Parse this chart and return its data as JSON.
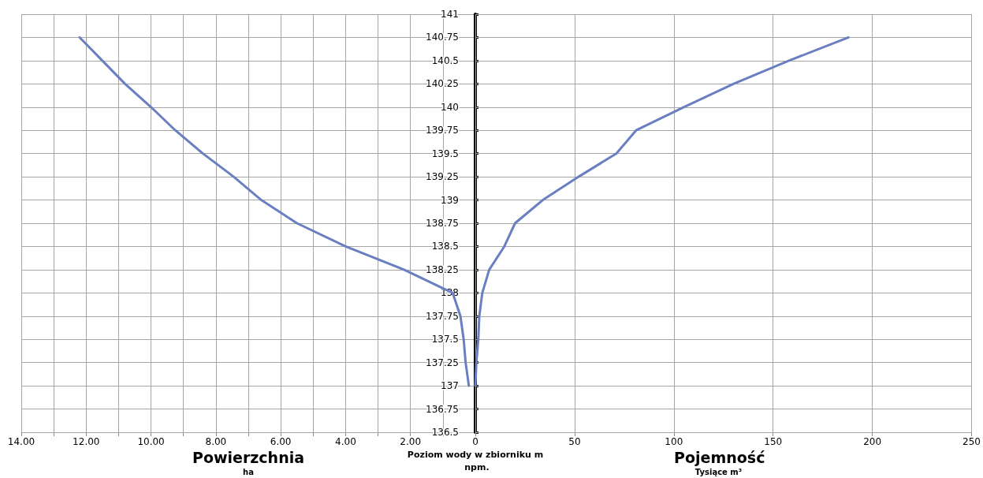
{
  "chart_data": [
    {
      "type": "line",
      "xlabel": "Powierzchnia",
      "ylabel": "Poziom wody w zbiorniku m npm.",
      "annotations": [
        "ha"
      ],
      "x": [
        0.2,
        0.3,
        0.36,
        0.46,
        0.7,
        2.2,
        4.0,
        5.5,
        6.6,
        7.45,
        8.4,
        9.25,
        10.0,
        10.8,
        11.5,
        12.2
      ],
      "values": [
        137,
        137.25,
        137.5,
        137.75,
        138,
        138.25,
        138.5,
        138.75,
        139,
        139.25,
        139.5,
        139.75,
        140,
        140.25,
        140.5,
        140.75
      ],
      "color": "#6a7fc1",
      "marker": "none",
      "line_style": "solid",
      "grid": true,
      "xlim": [
        14,
        0
      ],
      "xticks": [
        {
          "value": 14,
          "label": "14.00"
        },
        {
          "value": 13,
          "label": null
        },
        {
          "value": 12,
          "label": "12.00"
        },
        {
          "value": 11,
          "label": null
        },
        {
          "value": 10,
          "label": "10.00"
        },
        {
          "value": 9,
          "label": null
        },
        {
          "value": 8,
          "label": "8.00"
        },
        {
          "value": 7,
          "label": null
        },
        {
          "value": 6,
          "label": "6.00"
        },
        {
          "value": 5,
          "label": null
        },
        {
          "value": 4,
          "label": "4.00"
        },
        {
          "value": 3,
          "label": null
        },
        {
          "value": 2,
          "label": "2.00"
        },
        {
          "value": 1,
          "label": null
        },
        {
          "value": 0,
          "label": null
        }
      ],
      "ylim": [
        136.5,
        141
      ],
      "yticks": [
        136.5,
        136.75,
        137,
        137.25,
        137.5,
        137.75,
        138,
        138.25,
        138.5,
        138.75,
        139,
        139.25,
        139.5,
        139.75,
        140,
        140.25,
        140.5,
        140.75,
        141
      ]
    },
    {
      "type": "line",
      "xlabel": "Pojemność",
      "annotations": [
        "Tysiące m³"
      ],
      "x": [
        0,
        0.5,
        1.5,
        2,
        3.5,
        7,
        14.6,
        20,
        34,
        52,
        71,
        81,
        105,
        130,
        158,
        188
      ],
      "values": [
        137,
        137.25,
        137.5,
        137.75,
        138,
        138.25,
        138.5,
        138.75,
        139,
        139.25,
        139.5,
        139.75,
        140,
        140.25,
        140.5,
        140.75
      ],
      "color": "#6a7fc1",
      "marker": "none",
      "line_style": "solid",
      "grid": true,
      "tick_labels": "x",
      "xlim": [
        0,
        250
      ],
      "xticks": [
        0,
        50,
        100,
        150,
        200,
        250
      ],
      "ylim": [
        136.5,
        141
      ],
      "yticks": [
        136.5,
        136.75,
        137,
        137.25,
        137.5,
        137.75,
        138,
        138.25,
        138.5,
        138.75,
        139,
        139.25,
        139.5,
        139.75,
        140,
        140.25,
        140.5,
        140.75,
        141
      ]
    }
  ]
}
